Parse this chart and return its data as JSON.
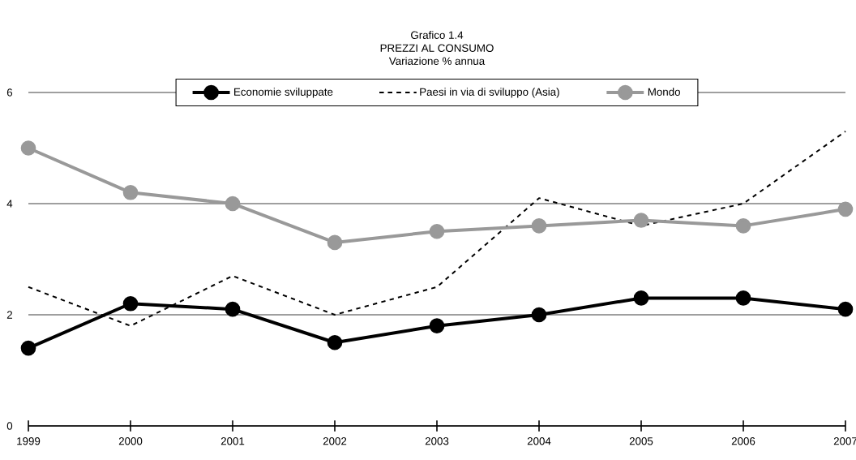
{
  "chart_data": {
    "type": "line",
    "title": "Grafico 1.4",
    "subtitle": "PREZZI AL CONSUMO",
    "ylabel": "Variazione % annua",
    "categories": [
      "1999",
      "2000",
      "2001",
      "2002",
      "2003",
      "2004",
      "2005",
      "2006",
      "2007"
    ],
    "series": [
      {
        "name": "Economie sviluppate",
        "color": "#000000",
        "marker": "circle",
        "line_style": "solid",
        "values": [
          1.4,
          2.2,
          2.1,
          1.5,
          1.8,
          2.0,
          2.3,
          2.3,
          2.1
        ]
      },
      {
        "name": "Paesi in via di sviluppo (Asia)",
        "color": "#000000",
        "marker": "none",
        "line_style": "dashed",
        "values": [
          2.5,
          1.8,
          2.7,
          2.0,
          2.5,
          4.1,
          3.6,
          4.0,
          5.3
        ]
      },
      {
        "name": "Mondo",
        "color": "#999999",
        "marker": "circle",
        "line_style": "solid",
        "values": [
          5.0,
          4.2,
          4.0,
          3.3,
          3.5,
          3.6,
          3.7,
          3.6,
          3.9
        ]
      }
    ],
    "ylim": [
      0,
      6
    ],
    "yticks": [
      0,
      2,
      4,
      6
    ],
    "grid": "y",
    "legend": "top"
  }
}
